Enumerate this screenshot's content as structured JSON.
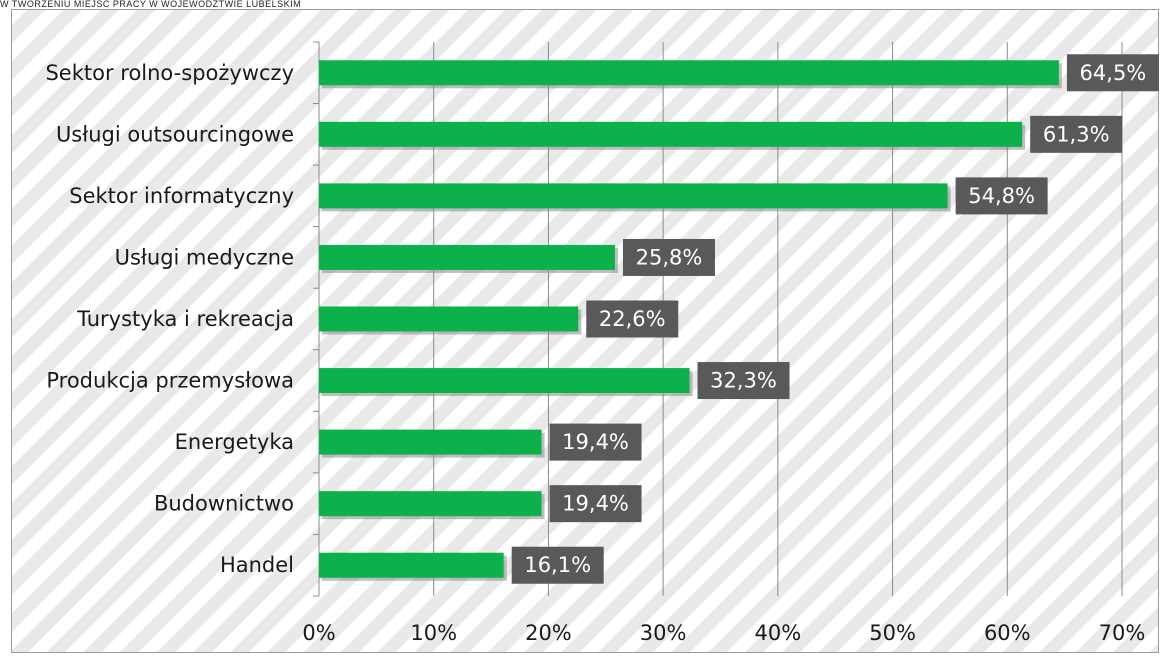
{
  "caption": "w tworzeniu miejsc pracy w województwie lubelskim",
  "colors": {
    "bar": "#0cb14b",
    "bar_shadow": "#8a8a8a",
    "label_box": "#595959",
    "gridline": "#8c8c8c",
    "stripe": "#e9e9e9"
  },
  "chart_data": {
    "type": "bar",
    "orientation": "horizontal",
    "categories": [
      "Sektor rolno-spożywczy",
      "Usługi outsourcingowe",
      "Sektor informatyczny",
      "Usługi medyczne",
      "Turystyka i rekreacja",
      "Produkcja przemysłowa",
      "Energetyka",
      "Budownictwo",
      "Handel"
    ],
    "values": [
      64.5,
      61.3,
      54.8,
      25.8,
      22.6,
      32.3,
      19.4,
      19.4,
      16.1
    ],
    "data_labels": [
      "64,5%",
      "61,3%",
      "54,8%",
      "25,8%",
      "22,6%",
      "32,3%",
      "19,4%",
      "19,4%",
      "16,1%"
    ],
    "x_ticks": [
      0,
      10,
      20,
      30,
      40,
      50,
      60,
      70
    ],
    "x_tick_labels": [
      "0%",
      "10%",
      "20%",
      "30%",
      "40%",
      "50%",
      "60%",
      "70%"
    ],
    "xlim": [
      0,
      70
    ],
    "grid": true,
    "legend": "none"
  }
}
